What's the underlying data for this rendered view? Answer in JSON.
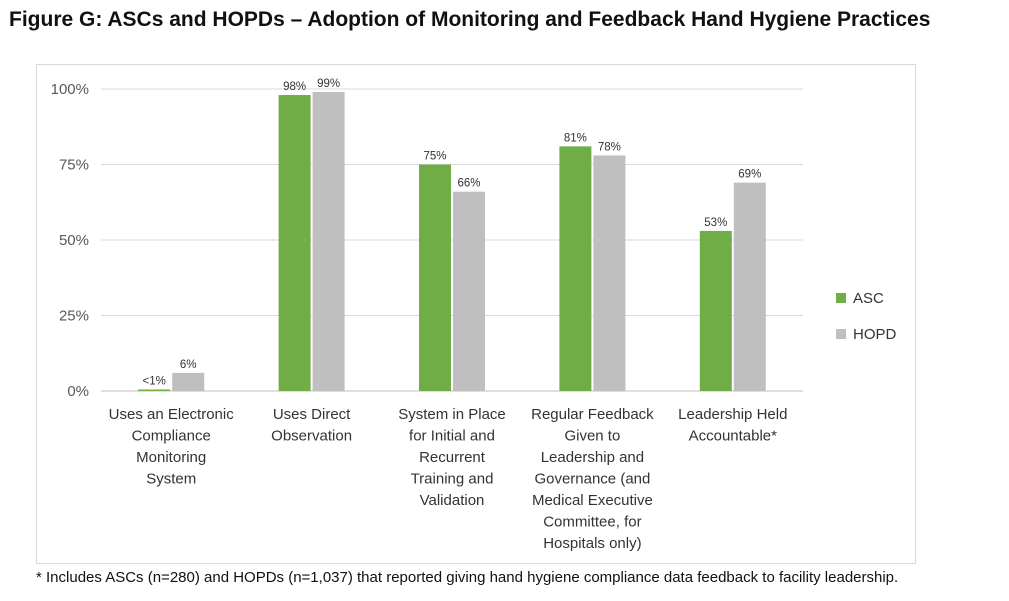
{
  "title": "Figure G: ASCs and HOPDs – Adoption of Monitoring and Feedback Hand Hygiene Practices",
  "footnote": "* Includes ASCs (n=280) and HOPDs (n=1,037) that reported giving hand hygiene compliance data feedback to facility leadership.",
  "colors": {
    "ASC": "#70ad47",
    "HOPD": "#bfbfbf",
    "grid": "#d9d9d9"
  },
  "chart_data": {
    "type": "bar",
    "title": "Figure G: ASCs and HOPDs – Adoption of Monitoring and Feedback Hand Hygiene Practices",
    "xlabel": "",
    "ylabel": "",
    "ylim": [
      0,
      100
    ],
    "yticks": [
      "0%",
      "25%",
      "50%",
      "75%",
      "100%"
    ],
    "grid": true,
    "legend": "right",
    "categories": [
      [
        "Uses an Electronic",
        "Compliance",
        "Monitoring",
        "System"
      ],
      [
        "Uses Direct",
        "Observation"
      ],
      [
        "System in Place",
        "for Initial and",
        "Recurrent",
        "Training and",
        "Validation"
      ],
      [
        "Regular Feedback",
        "Given to",
        "Leadership and",
        "Governance (and",
        "Medical Executive",
        "Committee, for",
        "Hospitals only)"
      ],
      [
        "Leadership Held",
        "Accountable*"
      ]
    ],
    "series": [
      {
        "name": "ASC",
        "values": [
          0.5,
          98,
          75,
          81,
          53
        ],
        "labels": [
          "<1%",
          "98%",
          "75%",
          "81%",
          "53%"
        ]
      },
      {
        "name": "HOPD",
        "values": [
          6,
          99,
          66,
          78,
          69
        ],
        "labels": [
          "6%",
          "99%",
          "66%",
          "78%",
          "69%"
        ]
      }
    ]
  }
}
